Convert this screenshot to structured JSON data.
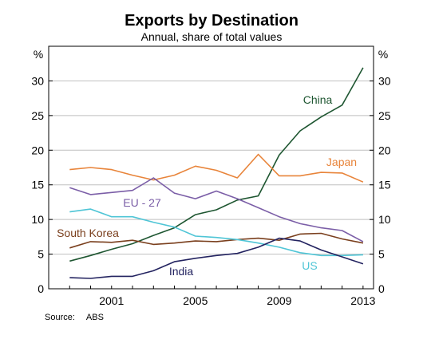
{
  "chart_data": {
    "type": "line",
    "title": "Exports by Destination",
    "subtitle": "Annual, share of total values",
    "ylabel_left": "%",
    "ylabel_right": "%",
    "ylim": [
      0,
      35
    ],
    "yticks": [
      0,
      5,
      10,
      15,
      20,
      25,
      30
    ],
    "xticks": [
      "2001",
      "2005",
      "2009",
      "2013"
    ],
    "x": [
      1999,
      2000,
      2001,
      2002,
      2003,
      2004,
      2005,
      2006,
      2007,
      2008,
      2009,
      2010,
      2011,
      2012,
      2013
    ],
    "grid": true,
    "series": [
      {
        "name": "China",
        "color": "#1e5631",
        "values": [
          4.0,
          4.8,
          5.7,
          6.5,
          7.7,
          8.8,
          10.7,
          11.4,
          12.8,
          13.4,
          19.3,
          22.8,
          24.8,
          26.5,
          31.9
        ]
      },
      {
        "name": "Japan",
        "color": "#e8843a",
        "values": [
          17.2,
          17.5,
          17.2,
          16.4,
          15.7,
          16.4,
          17.7,
          17.1,
          16.0,
          19.4,
          16.3,
          16.3,
          16.8,
          16.7,
          15.4
        ]
      },
      {
        "name": "EU - 27",
        "color": "#7b5ea7",
        "values": [
          14.6,
          13.6,
          13.9,
          14.2,
          16.0,
          13.8,
          13.0,
          14.1,
          13.0,
          11.7,
          10.4,
          9.4,
          8.8,
          8.4,
          6.8
        ]
      },
      {
        "name": "South Korea",
        "color": "#7a3f1d",
        "values": [
          5.9,
          6.8,
          6.7,
          7.0,
          6.4,
          6.6,
          6.9,
          6.8,
          7.1,
          7.3,
          7.0,
          7.9,
          8.0,
          7.2,
          6.6
        ]
      },
      {
        "name": "US",
        "color": "#4fc5d6",
        "values": [
          11.1,
          11.5,
          10.4,
          10.4,
          9.6,
          8.9,
          7.6,
          7.4,
          7.1,
          6.6,
          6.0,
          5.2,
          4.8,
          4.8,
          4.9
        ]
      },
      {
        "name": "India",
        "color": "#232360",
        "values": [
          1.6,
          1.5,
          1.8,
          1.8,
          2.6,
          3.9,
          4.4,
          4.8,
          5.1,
          6.0,
          7.3,
          6.9,
          5.6,
          4.6,
          3.6
        ]
      }
    ],
    "source_label": "Source:",
    "source_value": "ABS"
  }
}
